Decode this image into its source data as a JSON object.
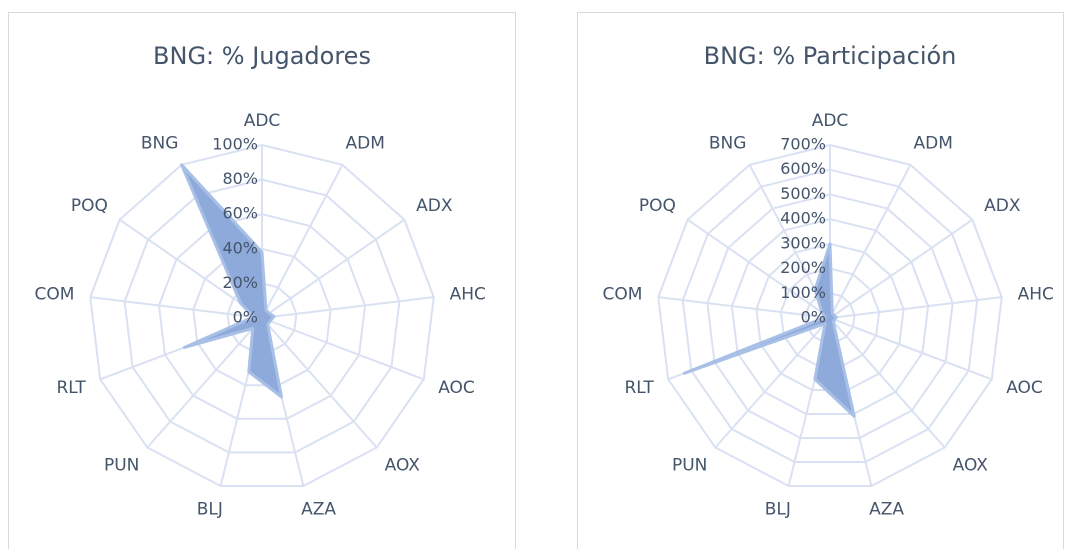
{
  "chart_data": [
    {
      "type": "radar",
      "title": "BNG: % Jugadores",
      "categories": [
        "ADC",
        "ADM",
        "ADX",
        "AHC",
        "AOC",
        "AOX",
        "AZA",
        "BLJ",
        "PUN",
        "RLT",
        "COM",
        "POQ",
        "BNG"
      ],
      "values": [
        38,
        5,
        5,
        7,
        5,
        5,
        47,
        32,
        8,
        48,
        5,
        15,
        100
      ],
      "color": "#8eaadb",
      "ylim": [
        0,
        100
      ],
      "yticks": [
        {
          "value": 0,
          "label": "0%"
        },
        {
          "value": 20,
          "label": "20%"
        },
        {
          "value": 40,
          "label": "40%"
        },
        {
          "value": 60,
          "label": "60%"
        },
        {
          "value": 80,
          "label": "80%"
        },
        {
          "value": 100,
          "label": "100%"
        }
      ],
      "grid": true
    },
    {
      "type": "radar",
      "title": "BNG: % Participación",
      "categories": [
        "ADC",
        "ADM",
        "ADX",
        "AHC",
        "AOC",
        "AOX",
        "AZA",
        "BLJ",
        "PUN",
        "RLT",
        "COM",
        "POQ",
        "BNG"
      ],
      "values": [
        300,
        20,
        20,
        25,
        20,
        20,
        410,
        255,
        30,
        630,
        20,
        40,
        130
      ],
      "color": "#8eaadb",
      "ylim": [
        0,
        700
      ],
      "yticks": [
        {
          "value": 0,
          "label": "0%"
        },
        {
          "value": 100,
          "label": "100%"
        },
        {
          "value": 200,
          "label": "200%"
        },
        {
          "value": 300,
          "label": "300%"
        },
        {
          "value": 400,
          "label": "400%"
        },
        {
          "value": 500,
          "label": "500%"
        },
        {
          "value": 600,
          "label": "600%"
        },
        {
          "value": 700,
          "label": "700%"
        }
      ],
      "grid": true
    }
  ]
}
